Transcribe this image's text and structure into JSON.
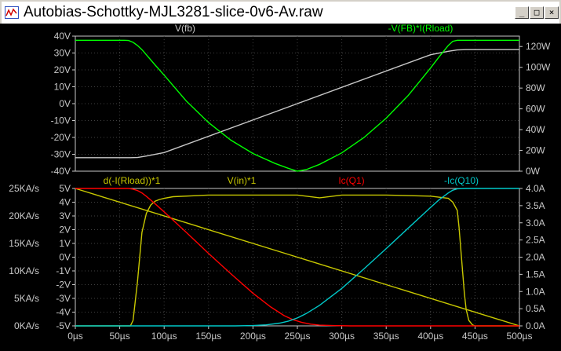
{
  "window": {
    "title": "Autobias-Schottky-MJL3281-slice-0v6-Av.raw",
    "controls": {
      "minimize": "_",
      "maximize": "□",
      "close": "×"
    }
  },
  "colors": {
    "background": "#000000",
    "grid": "#404040",
    "axis_text": "#c8c8c8",
    "white_trace": "#c8c8c8",
    "green_trace": "#00ff00",
    "yellow_trace": "#c8c800",
    "red_trace": "#ff0000",
    "cyan_trace": "#00c8c8"
  },
  "chart_data": [
    {
      "type": "line",
      "pane": "top",
      "legend": [
        "V(fb)",
        "-V(FB)*I(Rload)"
      ],
      "left_axis": {
        "ticks": [
          "40V",
          "30V",
          "20V",
          "10V",
          "0V",
          "-10V",
          "-20V",
          "-30V",
          "-40V"
        ],
        "ylim": [
          -40,
          40
        ]
      },
      "right_axis": {
        "ticks": [
          "120W",
          "100W",
          "80W",
          "60W",
          "40W",
          "20W",
          "0W"
        ],
        "ylim": [
          0,
          130
        ]
      },
      "series": [
        {
          "name": "V(fb)",
          "color": "#c8c8c8",
          "axis": "left",
          "x": [
            0,
            62,
            70,
            80,
            100,
            250,
            400,
            420,
            430,
            440,
            500
          ],
          "y": [
            -32,
            -32,
            -31.9,
            -31,
            -29,
            0,
            29,
            31,
            31.8,
            32,
            32
          ]
        },
        {
          "name": "-V(FB)*I(Rload)",
          "color": "#00ff00",
          "axis": "right",
          "x": [
            0,
            55,
            60,
            65,
            70,
            75,
            80,
            90,
            100,
            125,
            150,
            175,
            200,
            225,
            240,
            250,
            260,
            275,
            300,
            325,
            350,
            375,
            400,
            410,
            420,
            425,
            430,
            435,
            440,
            445,
            500
          ],
          "y": [
            126,
            126,
            125.8,
            124,
            121,
            117,
            112,
            102,
            92.4,
            67.5,
            46.8,
            29.9,
            17.0,
            7.4,
            2.7,
            0,
            1.5,
            6.6,
            17.6,
            32.4,
            51.0,
            73.1,
            99.3,
            110.5,
            121.1,
            125.0,
            126,
            126,
            126,
            126,
            126
          ]
        }
      ],
      "xlim": [
        0,
        500
      ]
    },
    {
      "type": "line",
      "pane": "bottom",
      "legend": [
        "d(-I(Rload))*1",
        "V(in)*1",
        "Ic(Q1)",
        "-Ic(Q10)"
      ],
      "left_axis_outer": {
        "ticks": [
          "25KA/s",
          "20KA/s",
          "15KA/s",
          "10KA/s",
          "5KA/s",
          "0KA/s"
        ],
        "ylim": [
          0,
          25
        ]
      },
      "left_axis_inner": {
        "ticks": [
          "5V",
          "4V",
          "3V",
          "2V",
          "1V",
          "0V",
          "-1V",
          "-2V",
          "-3V",
          "-4V",
          "-5V"
        ],
        "ylim": [
          -5,
          5
        ]
      },
      "right_axis": {
        "ticks": [
          "4.0A",
          "3.5A",
          "3.0A",
          "2.5A",
          "2.0A",
          "1.5A",
          "1.0A",
          "0.5A",
          "0.0A"
        ],
        "ylim": [
          0,
          4
        ]
      },
      "x_axis": {
        "ticks": [
          "0µs",
          "50µs",
          "100µs",
          "150µs",
          "200µs",
          "250µs",
          "300µs",
          "350µs",
          "400µs",
          "450µs",
          "500µs"
        ],
        "xlim": [
          0,
          500
        ]
      },
      "series": [
        {
          "name": "d(-I(Rload))*1",
          "color": "#c8c800",
          "axis": "left_outer",
          "x": [
            0,
            62,
            65,
            70,
            75,
            80,
            85,
            90,
            95,
            100,
            110,
            150,
            250,
            275,
            300,
            350,
            400,
            420,
            425,
            430,
            432,
            435,
            438,
            440,
            443,
            447,
            450,
            500
          ],
          "y": [
            0,
            0,
            1,
            8,
            17,
            20.5,
            22,
            22.7,
            23,
            23.2,
            23.5,
            23.8,
            23.8,
            23.3,
            23.8,
            23.8,
            23.6,
            23.2,
            22.5,
            21,
            18,
            12,
            6,
            3,
            1,
            0.2,
            0,
            0
          ]
        },
        {
          "name": "V(in)*1",
          "color": "#c8c800",
          "axis": "left_inner",
          "x": [
            0,
            500
          ],
          "y": [
            5,
            -5
          ]
        },
        {
          "name": "Ic(Q1)",
          "color": "#ff0000",
          "axis": "right",
          "x": [
            0,
            60,
            65,
            70,
            75,
            80,
            90,
            100,
            125,
            150,
            175,
            200,
            220,
            235,
            245,
            255,
            265,
            275,
            290,
            310,
            350,
            400,
            500
          ],
          "y": [
            4.0,
            4.0,
            3.98,
            3.94,
            3.87,
            3.77,
            3.55,
            3.32,
            2.72,
            2.11,
            1.52,
            0.95,
            0.55,
            0.3,
            0.18,
            0.1,
            0.05,
            0.02,
            0.01,
            0,
            0,
            0,
            0
          ]
        },
        {
          "name": "-Ic(Q10)",
          "color": "#00c8c8",
          "axis": "right",
          "x": [
            0,
            180,
            200,
            215,
            230,
            240,
            250,
            260,
            275,
            300,
            325,
            350,
            375,
            400,
            410,
            420,
            425,
            430,
            440,
            500
          ],
          "y": [
            0,
            0,
            0.01,
            0.03,
            0.08,
            0.14,
            0.23,
            0.36,
            0.6,
            1.09,
            1.66,
            2.25,
            2.85,
            3.45,
            3.68,
            3.87,
            3.95,
            3.99,
            4.0,
            4.0
          ]
        }
      ]
    }
  ]
}
